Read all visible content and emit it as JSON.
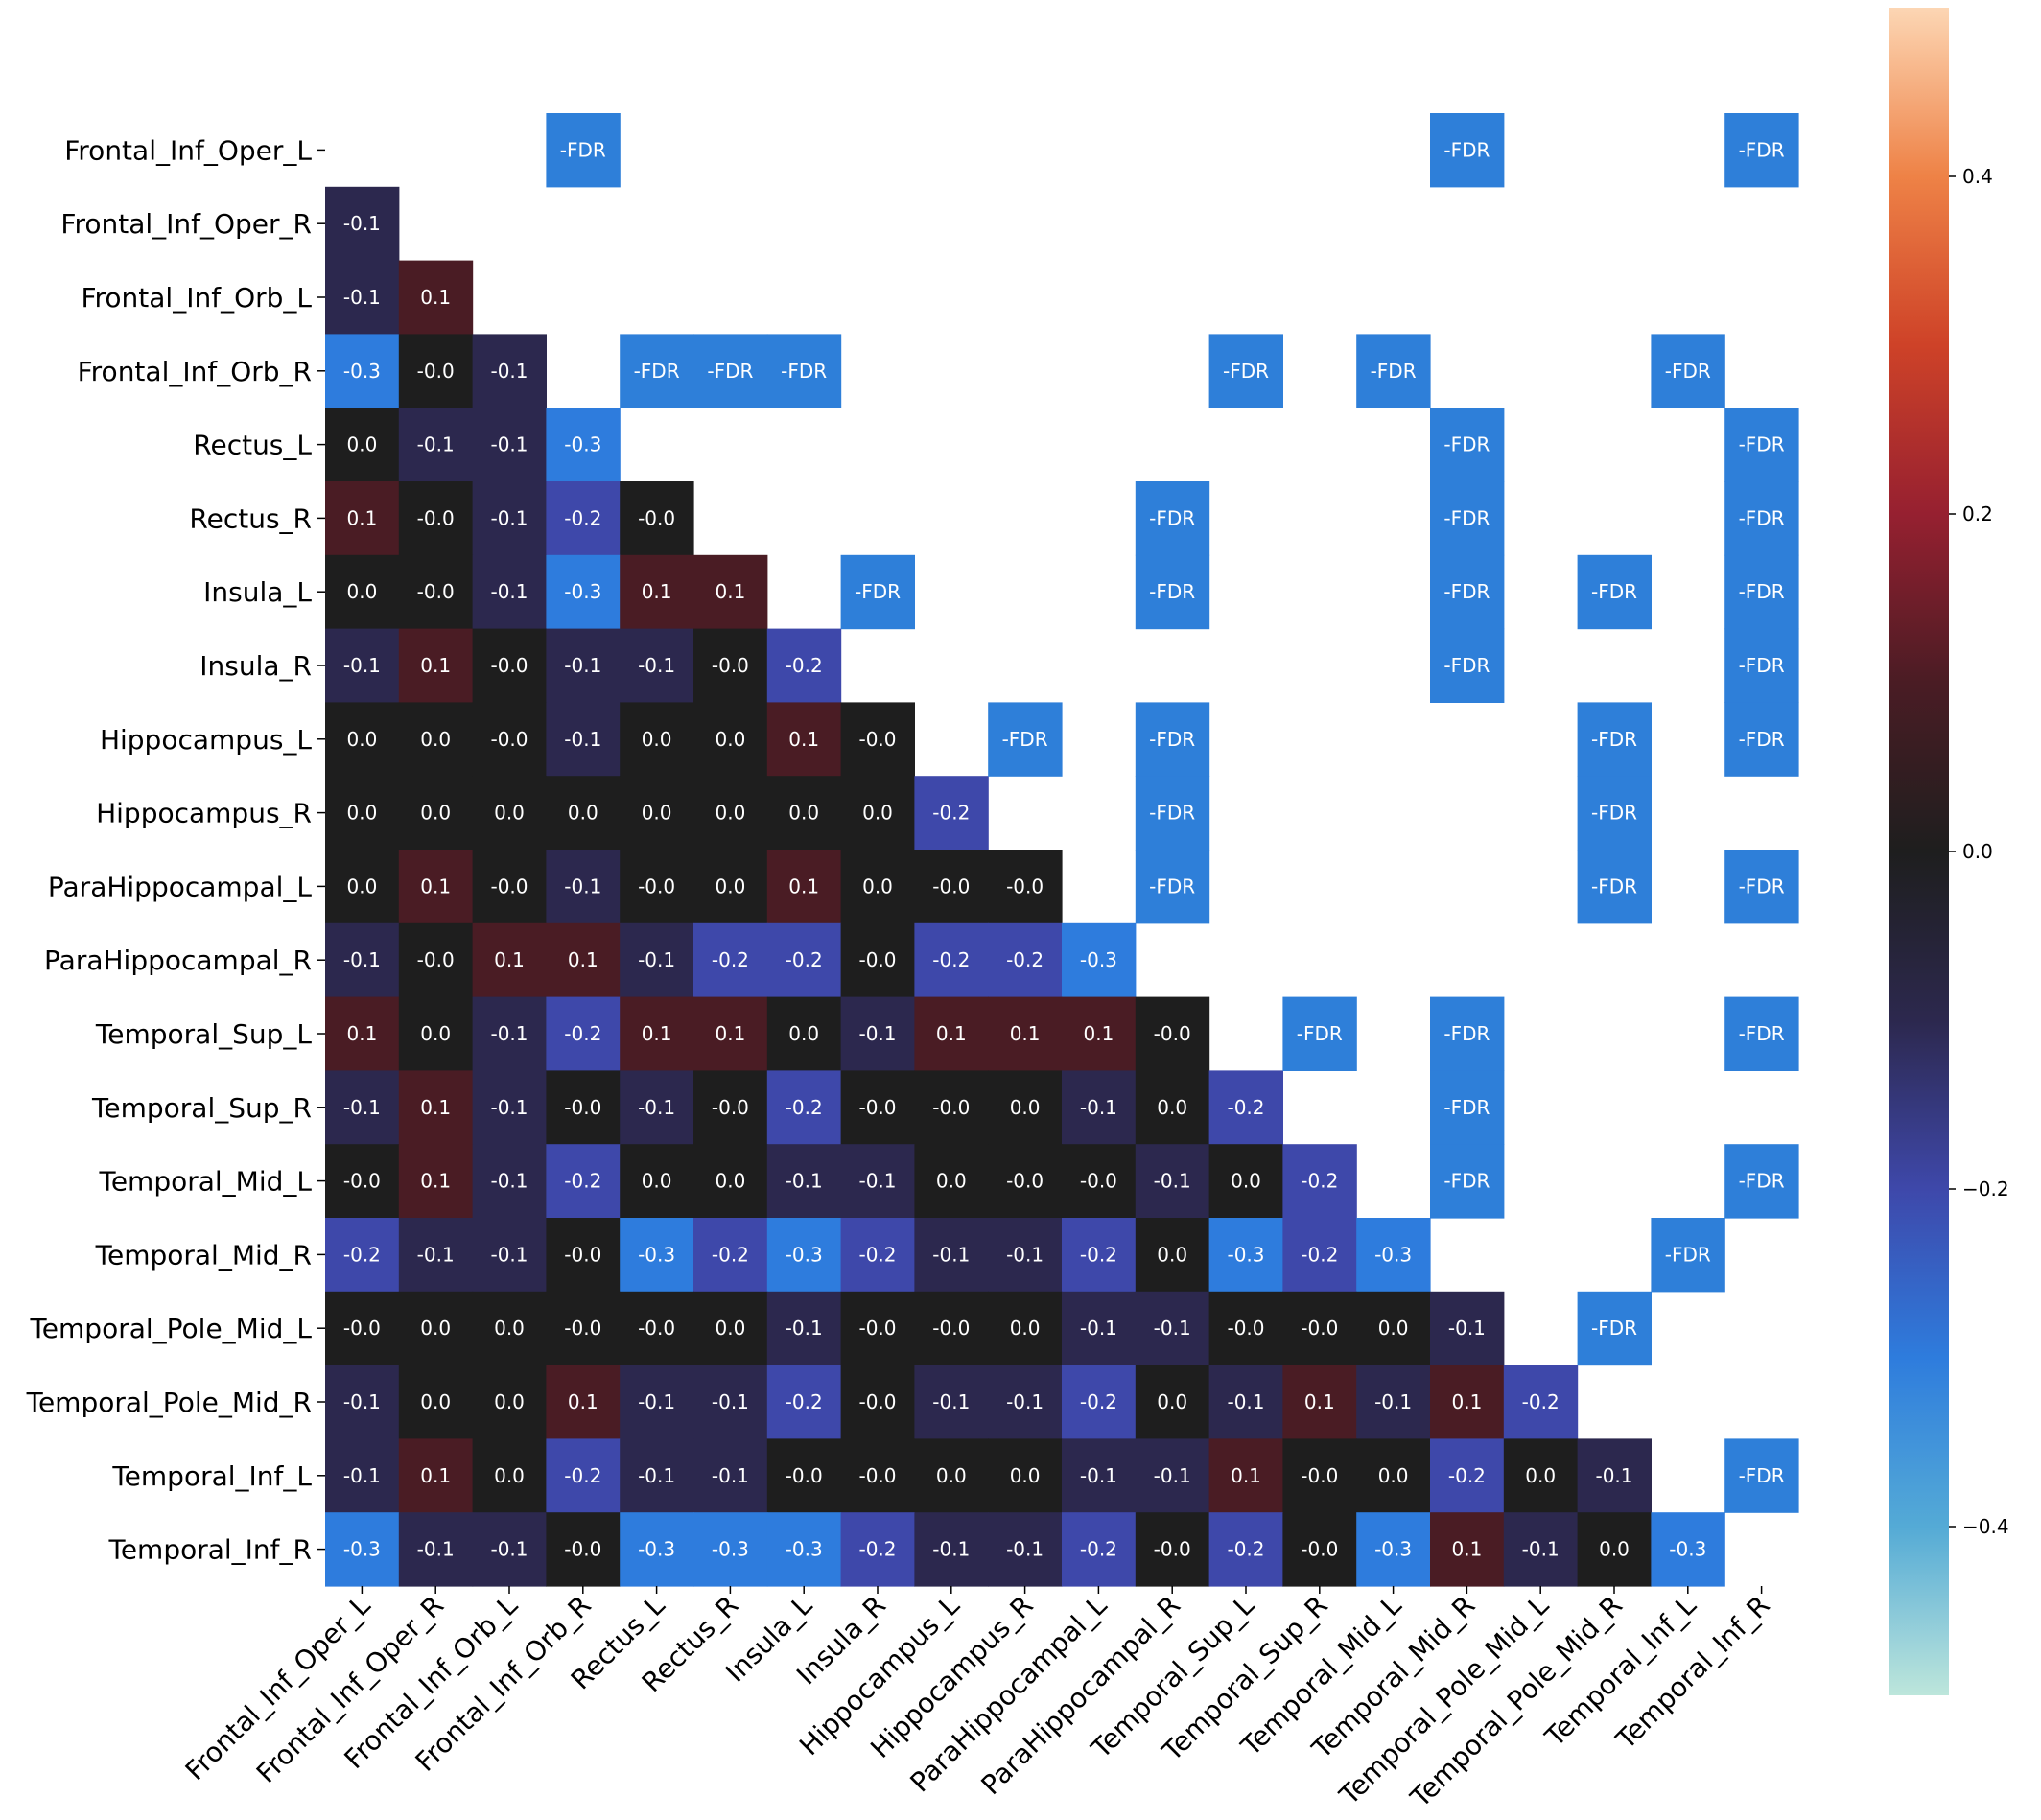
{
  "chart_data": {
    "type": "heatmap",
    "title": "",
    "xlabel": "",
    "ylabel": "",
    "labels": [
      "Frontal_Inf_Oper_L",
      "Frontal_Inf_Oper_R",
      "Frontal_Inf_Orb_L",
      "Frontal_Inf_Orb_R",
      "Rectus_L",
      "Rectus_R",
      "Insula_L",
      "Insula_R",
      "Hippocampus_L",
      "Hippocampus_R",
      "ParaHippocampal_L",
      "ParaHippocampal_R",
      "Temporal_Sup_L",
      "Temporal_Sup_R",
      "Temporal_Mid_L",
      "Temporal_Mid_R",
      "Temporal_Pole_Mid_L",
      "Temporal_Pole_Mid_R",
      "Temporal_Inf_L",
      "Temporal_Inf_R"
    ],
    "lower_triangle": [
      [],
      [
        -0.1
      ],
      [
        -0.1,
        0.1
      ],
      [
        -0.3,
        -0.0,
        -0.1
      ],
      [
        0.0,
        -0.1,
        -0.1,
        -0.3
      ],
      [
        0.1,
        -0.0,
        -0.1,
        -0.2,
        -0.0
      ],
      [
        0.0,
        -0.0,
        -0.1,
        -0.3,
        0.1,
        0.1
      ],
      [
        -0.1,
        0.1,
        -0.0,
        -0.1,
        -0.1,
        -0.0,
        -0.2
      ],
      [
        0.0,
        0.0,
        -0.0,
        -0.1,
        0.0,
        0.0,
        0.1,
        -0.0
      ],
      [
        0.0,
        0.0,
        0.0,
        0.0,
        0.0,
        0.0,
        0.0,
        0.0,
        -0.2
      ],
      [
        0.0,
        0.1,
        -0.0,
        -0.1,
        -0.0,
        0.0,
        0.1,
        0.0,
        -0.0,
        -0.0
      ],
      [
        -0.1,
        -0.0,
        0.1,
        0.1,
        -0.1,
        -0.2,
        -0.2,
        -0.0,
        -0.2,
        -0.2,
        -0.3
      ],
      [
        0.1,
        0.0,
        -0.1,
        -0.2,
        0.1,
        0.1,
        0.0,
        -0.1,
        0.1,
        0.1,
        0.1,
        -0.0
      ],
      [
        -0.1,
        0.1,
        -0.1,
        -0.0,
        -0.1,
        -0.0,
        -0.2,
        -0.0,
        -0.0,
        0.0,
        -0.1,
        0.0,
        -0.2
      ],
      [
        -0.0,
        0.1,
        -0.1,
        -0.2,
        0.0,
        0.0,
        -0.1,
        -0.1,
        0.0,
        -0.0,
        -0.0,
        -0.1,
        0.0,
        -0.2
      ],
      [
        -0.2,
        -0.1,
        -0.1,
        -0.0,
        -0.3,
        -0.2,
        -0.3,
        -0.2,
        -0.1,
        -0.1,
        -0.2,
        0.0,
        -0.3,
        -0.2,
        -0.3
      ],
      [
        -0.0,
        0.0,
        0.0,
        -0.0,
        -0.0,
        0.0,
        -0.1,
        -0.0,
        -0.0,
        0.0,
        -0.1,
        -0.1,
        -0.0,
        -0.0,
        0.0,
        -0.1
      ],
      [
        -0.1,
        0.0,
        0.0,
        0.1,
        -0.1,
        -0.1,
        -0.2,
        -0.0,
        -0.1,
        -0.1,
        -0.2,
        0.0,
        -0.1,
        0.1,
        -0.1,
        0.1,
        -0.2
      ],
      [
        -0.1,
        0.1,
        0.0,
        -0.2,
        -0.1,
        -0.1,
        -0.0,
        -0.0,
        0.0,
        0.0,
        -0.1,
        -0.1,
        0.1,
        -0.0,
        0.0,
        -0.2,
        0.0,
        -0.1
      ],
      [
        -0.3,
        -0.1,
        -0.1,
        -0.0,
        -0.3,
        -0.3,
        -0.3,
        -0.2,
        -0.1,
        -0.1,
        -0.2,
        -0.0,
        -0.2,
        -0.0,
        -0.3,
        0.1,
        -0.1,
        0.0,
        -0.3
      ]
    ],
    "fdr_text": "-FDR",
    "fdr_cells": [
      [
        0,
        3
      ],
      [
        0,
        15
      ],
      [
        0,
        19
      ],
      [
        3,
        4
      ],
      [
        3,
        5
      ],
      [
        3,
        6
      ],
      [
        3,
        12
      ],
      [
        3,
        14
      ],
      [
        3,
        18
      ],
      [
        4,
        15
      ],
      [
        4,
        19
      ],
      [
        5,
        11
      ],
      [
        5,
        15
      ],
      [
        5,
        19
      ],
      [
        6,
        7
      ],
      [
        6,
        11
      ],
      [
        6,
        15
      ],
      [
        6,
        17
      ],
      [
        6,
        19
      ],
      [
        7,
        15
      ],
      [
        7,
        19
      ],
      [
        8,
        9
      ],
      [
        8,
        11
      ],
      [
        8,
        17
      ],
      [
        8,
        19
      ],
      [
        9,
        11
      ],
      [
        9,
        17
      ],
      [
        10,
        11
      ],
      [
        10,
        17
      ],
      [
        10,
        19
      ],
      [
        12,
        13
      ],
      [
        12,
        15
      ],
      [
        12,
        19
      ],
      [
        13,
        15
      ],
      [
        14,
        15
      ],
      [
        14,
        19
      ],
      [
        15,
        18
      ],
      [
        16,
        17
      ],
      [
        18,
        19
      ]
    ],
    "color_range": [
      -0.5,
      0.5
    ],
    "colorbar_ticks": [
      0.4,
      0.2,
      0.0,
      -0.2,
      -0.4
    ],
    "colorbar_tick_labels": [
      "0.4",
      "0.2",
      "0.0",
      "−0.2",
      "−0.4"
    ],
    "colormap": "icefire",
    "fdr_color": "#2e7fd9",
    "grid": false,
    "legend": "colorbar-right"
  }
}
